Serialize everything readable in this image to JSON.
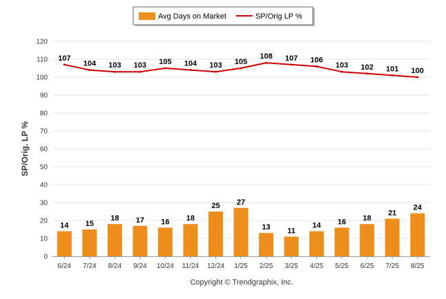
{
  "chart_data": {
    "type": "bar",
    "categories": [
      "6/24",
      "7/24",
      "8/24",
      "9/24",
      "10/24",
      "11/24",
      "12/24",
      "1/25",
      "2/25",
      "3/25",
      "4/25",
      "5/25",
      "6/25",
      "7/25",
      "8/25"
    ],
    "series": [
      {
        "name": "Avg Days on Market",
        "type": "bar",
        "color": "#ee8e1d",
        "values": [
          14,
          15,
          18,
          17,
          16,
          18,
          25,
          27,
          13,
          11,
          14,
          16,
          18,
          21,
          24
        ]
      },
      {
        "name": "SP/Orig LP %",
        "type": "line",
        "color": "#cc0000",
        "values": [
          107,
          104,
          103,
          103,
          105,
          104,
          103,
          105,
          108,
          107,
          106,
          103,
          102,
          101,
          100
        ]
      }
    ],
    "ylabel": "SP/Orig. LP %",
    "xlabel": "",
    "ylim": [
      0,
      120
    ],
    "yticks": [
      0,
      10,
      20,
      30,
      40,
      50,
      60,
      70,
      80,
      90,
      100,
      110,
      120
    ],
    "grid": true,
    "legend_position": "top-center",
    "credit": "Copyright © Trendgraphix, Inc."
  }
}
